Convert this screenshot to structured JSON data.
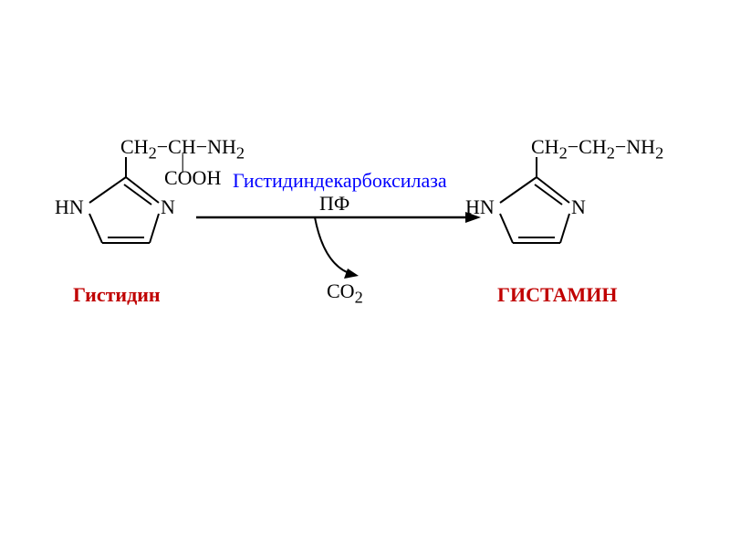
{
  "left_molecule": {
    "side_chain": "CH<sub>2</sub>−CH−NH<sub>2</sub>",
    "carboxyl_bar": "|",
    "carboxyl": "COOH",
    "hn": "HN",
    "n": "N",
    "label": "Гистидин",
    "label_color": "#c00000"
  },
  "right_molecule": {
    "side_chain": "CH<sub>2</sub>−CH<sub>2</sub>−NH<sub>2</sub>",
    "hn": "HN",
    "n": "N",
    "label": "ГИСТАМИН",
    "label_color": "#c00000"
  },
  "enzyme": {
    "name": "Гистидиндекарбоксилаза",
    "cofactor": "ПФ",
    "name_color": "#0000ff"
  },
  "byproduct": "CO<sub>2</sub>",
  "colors": {
    "stroke": "#000000",
    "bg": "#ffffff"
  },
  "ring_geometry": {
    "width": 100,
    "height": 100,
    "stroke_width": 2
  }
}
